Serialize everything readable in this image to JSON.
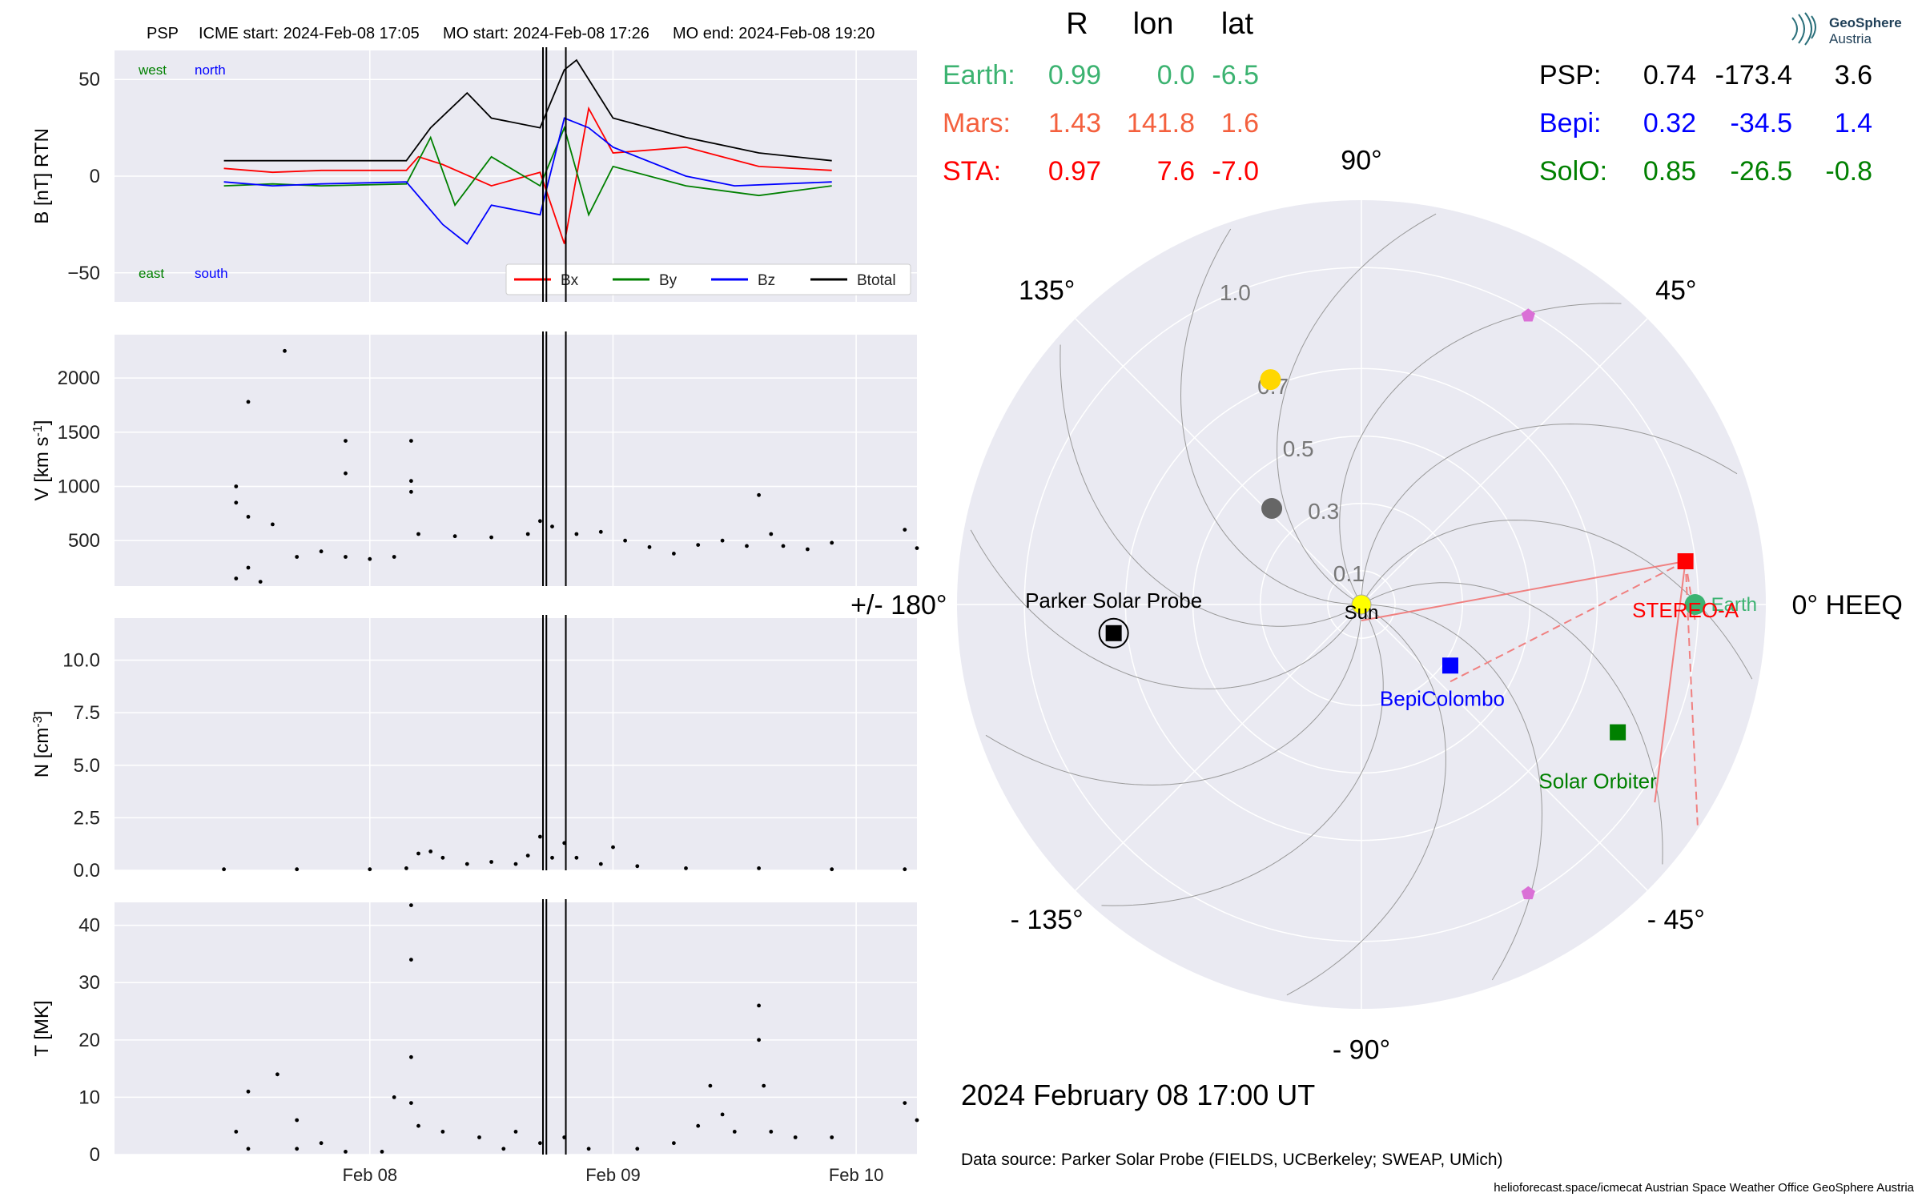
{
  "header": {
    "spacecraft": "PSP",
    "icme_start": "ICME start: 2024-Feb-08 17:05",
    "mo_start": "MO start: 2024-Feb-08 17:26",
    "mo_end": "MO end: 2024-Feb-08 19:20"
  },
  "footer": {
    "date": "2024 February 08  17:00 UT",
    "source": "Data source: Parker Solar Probe (FIELDS, UCBerkeley; SWEAP, UMich)",
    "credits": "helioforecast.space/icmecat   Austrian Space Weather Office   GeoSphere Austria"
  },
  "logo": {
    "line1": "GeoSphere",
    "line2": "Austria"
  },
  "colors": {
    "panel_bg": "#eaeaf2",
    "earth": "#3cb371",
    "mars": "#f4603e",
    "sta": "#ff0000",
    "psp": "#000000",
    "bepi": "#0000ff",
    "solo": "#008000",
    "bx": "#ff0000",
    "by": "#008000",
    "bz": "#0000ff",
    "btotal": "#000000"
  },
  "chart_data": [
    {
      "type": "line",
      "panel": "B",
      "ylabel": "B [nT] RTN",
      "ylim": [
        -65,
        65
      ],
      "yticks": [
        -50,
        0,
        50
      ],
      "xlim_days": [
        -1.05,
        2.25
      ],
      "xticks": [
        "Feb 08",
        "Feb 09",
        "Feb 10"
      ],
      "corner_labels": {
        "top_left": "west",
        "top_right": "north",
        "bottom_left": "east",
        "bottom_right": "south"
      },
      "series": [
        {
          "name": "Bx",
          "key": "bx",
          "points": [
            [
              -0.6,
              4
            ],
            [
              -0.4,
              2
            ],
            [
              -0.2,
              3
            ],
            [
              0.15,
              3
            ],
            [
              0.2,
              10
            ],
            [
              0.3,
              6
            ],
            [
              0.5,
              -5
            ],
            [
              0.7,
              2
            ],
            [
              0.8,
              -35
            ],
            [
              0.9,
              35
            ],
            [
              1.0,
              12
            ],
            [
              1.3,
              15
            ],
            [
              1.6,
              5
            ],
            [
              1.9,
              3
            ]
          ]
        },
        {
          "name": "By",
          "key": "by",
          "points": [
            [
              -0.6,
              -5
            ],
            [
              -0.4,
              -4
            ],
            [
              -0.2,
              -5
            ],
            [
              0.15,
              -4
            ],
            [
              0.25,
              20
            ],
            [
              0.35,
              -15
            ],
            [
              0.5,
              10
            ],
            [
              0.7,
              -5
            ],
            [
              0.8,
              25
            ],
            [
              0.9,
              -20
            ],
            [
              1.0,
              5
            ],
            [
              1.3,
              -5
            ],
            [
              1.6,
              -10
            ],
            [
              1.9,
              -5
            ]
          ]
        },
        {
          "name": "Bz",
          "key": "bz",
          "points": [
            [
              -0.6,
              -3
            ],
            [
              -0.4,
              -5
            ],
            [
              -0.2,
              -4
            ],
            [
              0.15,
              -3
            ],
            [
              0.3,
              -25
            ],
            [
              0.4,
              -35
            ],
            [
              0.5,
              -15
            ],
            [
              0.7,
              -20
            ],
            [
              0.8,
              30
            ],
            [
              0.9,
              25
            ],
            [
              1.0,
              15
            ],
            [
              1.3,
              0
            ],
            [
              1.5,
              -5
            ],
            [
              1.9,
              -3
            ]
          ]
        },
        {
          "name": "Btotal",
          "key": "btotal",
          "points": [
            [
              -0.6,
              8
            ],
            [
              -0.4,
              8
            ],
            [
              -0.2,
              8
            ],
            [
              0.15,
              8
            ],
            [
              0.25,
              25
            ],
            [
              0.4,
              43
            ],
            [
              0.5,
              30
            ],
            [
              0.7,
              25
            ],
            [
              0.8,
              55
            ],
            [
              0.85,
              60
            ],
            [
              1.0,
              30
            ],
            [
              1.3,
              20
            ],
            [
              1.6,
              12
            ],
            [
              1.9,
              8
            ]
          ]
        }
      ],
      "vlines_days": [
        0.712,
        0.726,
        0.806
      ],
      "legend": [
        "Bx",
        "By",
        "Bz",
        "Btotal"
      ],
      "legend_position": "lower right"
    },
    {
      "type": "scatter",
      "panel": "V",
      "ylabel": "V [km s$^{-1}$]",
      "ylim": [
        80,
        2400
      ],
      "yticks": [
        500,
        1000,
        1500,
        2000
      ],
      "points": [
        [
          -0.55,
          1000
        ],
        [
          -0.55,
          850
        ],
        [
          -0.5,
          720
        ],
        [
          -0.4,
          650
        ],
        [
          -0.35,
          2250
        ],
        [
          -0.5,
          1780
        ],
        [
          -0.1,
          1420
        ],
        [
          -0.1,
          1120
        ],
        [
          0.17,
          1420
        ],
        [
          0.17,
          1050
        ],
        [
          0.17,
          950
        ],
        [
          -0.55,
          150
        ],
        [
          -0.5,
          250
        ],
        [
          -0.45,
          120
        ],
        [
          -0.3,
          350
        ],
        [
          -0.2,
          400
        ],
        [
          -0.1,
          350
        ],
        [
          0.0,
          330
        ],
        [
          0.1,
          350
        ],
        [
          0.2,
          560
        ],
        [
          0.35,
          540
        ],
        [
          0.5,
          530
        ],
        [
          0.65,
          560
        ],
        [
          0.7,
          680
        ],
        [
          0.75,
          630
        ],
        [
          0.85,
          560
        ],
        [
          0.95,
          580
        ],
        [
          1.05,
          500
        ],
        [
          1.15,
          440
        ],
        [
          1.25,
          380
        ],
        [
          1.35,
          460
        ],
        [
          1.45,
          500
        ],
        [
          1.55,
          450
        ],
        [
          1.6,
          920
        ],
        [
          1.65,
          560
        ],
        [
          1.7,
          450
        ],
        [
          1.8,
          420
        ],
        [
          1.9,
          480
        ],
        [
          2.2,
          600
        ],
        [
          2.25,
          430
        ]
      ],
      "vlines_days": [
        0.712,
        0.726,
        0.806
      ]
    },
    {
      "type": "scatter",
      "panel": "N",
      "ylabel": "N [cm$^{-3}$]",
      "ylim": [
        0,
        12
      ],
      "yticks": [
        0.0,
        2.5,
        5.0,
        7.5,
        10.0
      ],
      "points": [
        [
          -0.6,
          0.05
        ],
        [
          -0.3,
          0.05
        ],
        [
          0.0,
          0.05
        ],
        [
          0.15,
          0.1
        ],
        [
          0.2,
          0.8
        ],
        [
          0.25,
          0.9
        ],
        [
          0.3,
          0.6
        ],
        [
          0.4,
          0.3
        ],
        [
          0.5,
          0.4
        ],
        [
          0.6,
          0.3
        ],
        [
          0.65,
          0.7
        ],
        [
          0.7,
          1.6
        ],
        [
          0.75,
          0.6
        ],
        [
          0.8,
          1.3
        ],
        [
          0.85,
          0.6
        ],
        [
          0.95,
          0.3
        ],
        [
          1.0,
          1.1
        ],
        [
          1.1,
          0.2
        ],
        [
          1.3,
          0.1
        ],
        [
          1.6,
          0.1
        ],
        [
          1.9,
          0.05
        ],
        [
          2.2,
          0.05
        ]
      ],
      "vlines_days": [
        0.712,
        0.726,
        0.806
      ]
    },
    {
      "type": "scatter",
      "panel": "T",
      "ylabel": "T [MK]",
      "ylim": [
        0,
        44
      ],
      "yticks": [
        0,
        10,
        20,
        30,
        40
      ],
      "points": [
        [
          -0.55,
          4
        ],
        [
          -0.5,
          11
        ],
        [
          -0.38,
          14
        ],
        [
          -0.3,
          6
        ],
        [
          -0.2,
          2
        ],
        [
          0.1,
          10
        ],
        [
          0.17,
          43.5
        ],
        [
          0.17,
          34
        ],
        [
          0.17,
          17
        ],
        [
          0.17,
          9
        ],
        [
          -0.5,
          1
        ],
        [
          -0.3,
          1
        ],
        [
          -0.1,
          0.5
        ],
        [
          0.05,
          0.5
        ],
        [
          0.2,
          5
        ],
        [
          0.3,
          4
        ],
        [
          0.45,
          3
        ],
        [
          0.55,
          1
        ],
        [
          0.6,
          4
        ],
        [
          0.7,
          2
        ],
        [
          0.8,
          3
        ],
        [
          0.9,
          1
        ],
        [
          1.1,
          1
        ],
        [
          1.25,
          2
        ],
        [
          1.35,
          5
        ],
        [
          1.4,
          12
        ],
        [
          1.45,
          7
        ],
        [
          1.5,
          4
        ],
        [
          1.6,
          26
        ],
        [
          1.6,
          20
        ],
        [
          1.62,
          12
        ],
        [
          1.65,
          4
        ],
        [
          1.75,
          3
        ],
        [
          1.9,
          3
        ],
        [
          2.2,
          9
        ],
        [
          2.25,
          6
        ]
      ],
      "vlines_days": [
        0.712,
        0.726,
        0.806
      ]
    },
    {
      "type": "scatter",
      "panel": "polar",
      "rlim": [
        0,
        1.2
      ],
      "rtick_labels": [
        "0.1",
        "0.3",
        "0.5",
        "0.7",
        "1.0"
      ],
      "rtick_values": [
        0.1,
        0.3,
        0.5,
        0.7,
        1.0
      ],
      "angle_labels": [
        {
          "angle": 0,
          "text": "0° HEEQ"
        },
        {
          "angle": 45,
          "text": "45°"
        },
        {
          "angle": 90,
          "text": "90°"
        },
        {
          "angle": 135,
          "text": "135°"
        },
        {
          "angle": 180,
          "text": "+/- 180°"
        },
        {
          "angle": -135,
          "text": "- 135°"
        },
        {
          "angle": -90,
          "text": "- 90°"
        },
        {
          "angle": -45,
          "text": "- 45°"
        }
      ],
      "objects": [
        {
          "key": "sun",
          "label": "Sun",
          "r": 0.0,
          "lon": 0,
          "marker": "circle",
          "color": "#ffff00"
        },
        {
          "key": "earth",
          "label": "Earth",
          "r": 0.99,
          "lon": 0.0,
          "marker": "circle",
          "color": "#3cb371"
        },
        {
          "key": "sta",
          "label": "STEREO-A",
          "r": 0.97,
          "lon": 7.6,
          "marker": "square",
          "color": "#ff0000"
        },
        {
          "key": "psp",
          "label": "Parker Solar Probe",
          "r": 0.74,
          "lon": -173.4,
          "marker": "square",
          "color": "#000000"
        },
        {
          "key": "bepi",
          "label": "BepiColombo",
          "r": 0.32,
          "lon": -34.5,
          "marker": "square",
          "color": "#0000ff"
        },
        {
          "key": "solo",
          "label": "Solar Orbiter",
          "r": 0.85,
          "lon": -26.5,
          "marker": "square",
          "color": "#008000"
        },
        {
          "key": "mercury",
          "label": "",
          "r": 0.39,
          "lon": 133,
          "marker": "circle",
          "color": "#666666"
        },
        {
          "key": "venus",
          "label": "",
          "r": 0.72,
          "lon": 112,
          "marker": "circle",
          "color": "#ffd700"
        },
        {
          "key": "l4",
          "label": "",
          "r": 0.99,
          "lon": 60,
          "marker": "pentagon",
          "color": "#da70d6"
        },
        {
          "key": "l5",
          "label": "",
          "r": 0.99,
          "lon": -60,
          "marker": "pentagon",
          "color": "#da70d6"
        }
      ],
      "legend_note": "PSP enclosed by black circle"
    }
  ],
  "position_table": {
    "headers": [
      "R",
      "lon",
      "lat"
    ],
    "left": [
      {
        "name": "Earth:",
        "r": "0.99",
        "lon": "0.0",
        "lat": "-6.5",
        "key": "earth"
      },
      {
        "name": "Mars:",
        "r": "1.43",
        "lon": "141.8",
        "lat": "1.6",
        "key": "mars"
      },
      {
        "name": "STA:",
        "r": "0.97",
        "lon": "7.6",
        "lat": "-7.0",
        "key": "sta"
      }
    ],
    "right": [
      {
        "name": "PSP:",
        "r": "0.74",
        "lon": "-173.4",
        "lat": "3.6",
        "key": "psp"
      },
      {
        "name": "Bepi:",
        "r": "0.32",
        "lon": "-34.5",
        "lat": "1.4",
        "key": "bepi"
      },
      {
        "name": "SolO:",
        "r": "0.85",
        "lon": "-26.5",
        "lat": "-0.8",
        "key": "solo"
      }
    ]
  }
}
